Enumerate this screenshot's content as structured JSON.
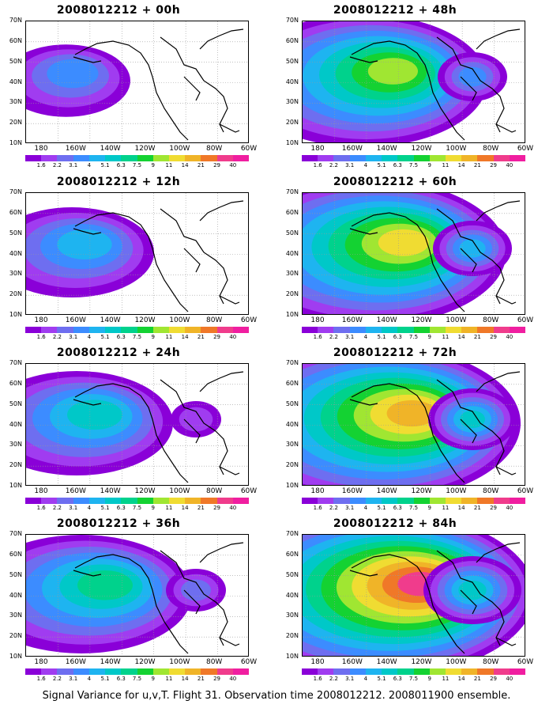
{
  "lat_labels": [
    "70N",
    "60N",
    "50N",
    "40N",
    "30N",
    "20N",
    "10N"
  ],
  "lon_labels": [
    "180",
    "160W",
    "140W",
    "120W",
    "100W",
    "80W",
    "60W"
  ],
  "colorbar": {
    "labels": [
      "1.6",
      "2.2",
      "3.1",
      "4",
      "5.1",
      "6.3",
      "7.5",
      "9",
      "11",
      "14",
      "21",
      "29",
      "40"
    ],
    "colors": [
      "#8a00d8",
      "#a03cf0",
      "#6e6ef0",
      "#3c8cff",
      "#1eb4f0",
      "#00c8c8",
      "#00d28c",
      "#14d232",
      "#a0e632",
      "#f0dc32",
      "#f0b428",
      "#f07828",
      "#f03c8c",
      "#f01ea0"
    ]
  },
  "panels": [
    {
      "title": "2008012212 + 00h",
      "level": 0
    },
    {
      "title": "2008012212 + 48h",
      "level": 4
    },
    {
      "title": "2008012212 + 12h",
      "level": 1
    },
    {
      "title": "2008012212 + 60h",
      "level": 5
    },
    {
      "title": "2008012212 + 24h",
      "level": 2
    },
    {
      "title": "2008012212 + 72h",
      "level": 6
    },
    {
      "title": "2008012212 + 36h",
      "level": 3
    },
    {
      "title": "2008012212 + 84h",
      "level": 7
    }
  ],
  "caption": "Signal Variance for u,v,T. Flight 31. Observation time 2008012212. 2008011900 ensemble."
}
